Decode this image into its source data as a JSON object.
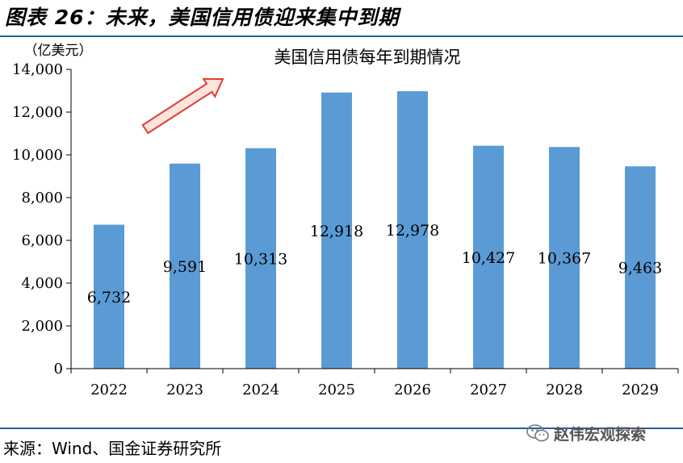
{
  "figure": {
    "title": "图表 26：未来，美国信用债迎来集中到期",
    "source": "来源：Wind、国金证券研究所",
    "watermark": "赵伟宏观探索",
    "watermark_icon": "wechat-icon"
  },
  "colors": {
    "bar": "#5b9bd5",
    "rule": "#1f5fa8",
    "arrow_fill": "#fde4dc",
    "arrow_stroke": "#e03c31"
  },
  "chart_data": {
    "type": "bar",
    "title": "美国信用债每年到期情况",
    "ylabel": "（亿美元）",
    "xlabel": "",
    "categories": [
      "2022",
      "2023",
      "2024",
      "2025",
      "2026",
      "2027",
      "2028",
      "2029"
    ],
    "values": [
      6732,
      9591,
      10313,
      12918,
      12978,
      10427,
      10367,
      9463
    ],
    "value_labels": [
      "6,732",
      "9,591",
      "10,313",
      "12,918",
      "12,978",
      "10,427",
      "10,367",
      "9,463"
    ],
    "ylim": [
      0,
      14000
    ],
    "yticks": [
      0,
      2000,
      4000,
      6000,
      8000,
      10000,
      12000,
      14000
    ],
    "ytick_labels": [
      "0",
      "2,000",
      "4,000",
      "6,000",
      "8,000",
      "10,000",
      "12,000",
      "14,000"
    ],
    "grid": false,
    "legend": "none",
    "annotation": "upward-trend-arrow"
  }
}
